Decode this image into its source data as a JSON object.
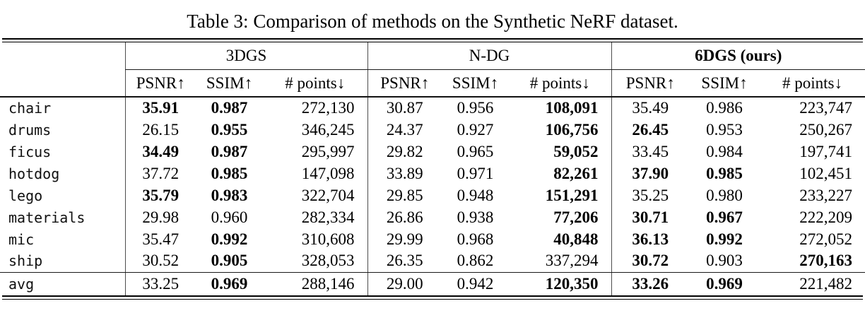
{
  "title": "Table 3: Comparison of methods on the Synthetic NeRF dataset.",
  "header": {
    "groups": [
      {
        "label": "3DGS",
        "bold": false
      },
      {
        "label": "N-DG",
        "bold": false
      },
      {
        "label": "6DGS (ours)",
        "bold": true
      }
    ],
    "metrics": [
      "PSNR↑",
      "SSIM↑",
      "# points↓"
    ]
  },
  "rows": [
    {
      "label": "chair",
      "cells": [
        {
          "v": "35.91",
          "b": true
        },
        {
          "v": "0.987",
          "b": true
        },
        {
          "v": "272,130",
          "b": false
        },
        {
          "v": "30.87",
          "b": false
        },
        {
          "v": "0.956",
          "b": false
        },
        {
          "v": "108,091",
          "b": true
        },
        {
          "v": "35.49",
          "b": false
        },
        {
          "v": "0.986",
          "b": false
        },
        {
          "v": "223,747",
          "b": false
        }
      ]
    },
    {
      "label": "drums",
      "cells": [
        {
          "v": "26.15",
          "b": false
        },
        {
          "v": "0.955",
          "b": true
        },
        {
          "v": "346,245",
          "b": false
        },
        {
          "v": "24.37",
          "b": false
        },
        {
          "v": "0.927",
          "b": false
        },
        {
          "v": "106,756",
          "b": true
        },
        {
          "v": "26.45",
          "b": true
        },
        {
          "v": "0.953",
          "b": false
        },
        {
          "v": "250,267",
          "b": false
        }
      ]
    },
    {
      "label": "ficus",
      "cells": [
        {
          "v": "34.49",
          "b": true
        },
        {
          "v": "0.987",
          "b": true
        },
        {
          "v": "295,997",
          "b": false
        },
        {
          "v": "29.82",
          "b": false
        },
        {
          "v": "0.965",
          "b": false
        },
        {
          "v": "59,052",
          "b": true
        },
        {
          "v": "33.45",
          "b": false
        },
        {
          "v": "0.984",
          "b": false
        },
        {
          "v": "197,741",
          "b": false
        }
      ]
    },
    {
      "label": "hotdog",
      "cells": [
        {
          "v": "37.72",
          "b": false
        },
        {
          "v": "0.985",
          "b": true
        },
        {
          "v": "147,098",
          "b": false
        },
        {
          "v": "33.89",
          "b": false
        },
        {
          "v": "0.971",
          "b": false
        },
        {
          "v": "82,261",
          "b": true
        },
        {
          "v": "37.90",
          "b": true
        },
        {
          "v": "0.985",
          "b": true
        },
        {
          "v": "102,451",
          "b": false
        }
      ]
    },
    {
      "label": "lego",
      "cells": [
        {
          "v": "35.79",
          "b": true
        },
        {
          "v": "0.983",
          "b": true
        },
        {
          "v": "322,704",
          "b": false
        },
        {
          "v": "29.85",
          "b": false
        },
        {
          "v": "0.948",
          "b": false
        },
        {
          "v": "151,291",
          "b": true
        },
        {
          "v": "35.25",
          "b": false
        },
        {
          "v": "0.980",
          "b": false
        },
        {
          "v": "233,227",
          "b": false
        }
      ]
    },
    {
      "label": "materials",
      "cells": [
        {
          "v": "29.98",
          "b": false
        },
        {
          "v": "0.960",
          "b": false
        },
        {
          "v": "282,334",
          "b": false
        },
        {
          "v": "26.86",
          "b": false
        },
        {
          "v": "0.938",
          "b": false
        },
        {
          "v": "77,206",
          "b": true
        },
        {
          "v": "30.71",
          "b": true
        },
        {
          "v": "0.967",
          "b": true
        },
        {
          "v": "222,209",
          "b": false
        }
      ]
    },
    {
      "label": "mic",
      "cells": [
        {
          "v": "35.47",
          "b": false
        },
        {
          "v": "0.992",
          "b": true
        },
        {
          "v": "310,608",
          "b": false
        },
        {
          "v": "29.99",
          "b": false
        },
        {
          "v": "0.968",
          "b": false
        },
        {
          "v": "40,848",
          "b": true
        },
        {
          "v": "36.13",
          "b": true
        },
        {
          "v": "0.992",
          "b": true
        },
        {
          "v": "272,052",
          "b": false
        }
      ]
    },
    {
      "label": "ship",
      "cells": [
        {
          "v": "30.52",
          "b": false
        },
        {
          "v": "0.905",
          "b": true
        },
        {
          "v": "328,053",
          "b": false
        },
        {
          "v": "26.35",
          "b": false
        },
        {
          "v": "0.862",
          "b": false
        },
        {
          "v": "337,294",
          "b": false
        },
        {
          "v": "30.72",
          "b": true
        },
        {
          "v": "0.903",
          "b": false
        },
        {
          "v": "270,163",
          "b": true
        }
      ]
    }
  ],
  "avg_row": {
    "label": "avg",
    "cells": [
      {
        "v": "33.25",
        "b": false
      },
      {
        "v": "0.969",
        "b": true
      },
      {
        "v": "288,146",
        "b": false
      },
      {
        "v": "29.00",
        "b": false
      },
      {
        "v": "0.942",
        "b": false
      },
      {
        "v": "120,350",
        "b": true
      },
      {
        "v": "33.26",
        "b": true
      },
      {
        "v": "0.969",
        "b": true
      },
      {
        "v": "221,482",
        "b": false
      }
    ]
  }
}
